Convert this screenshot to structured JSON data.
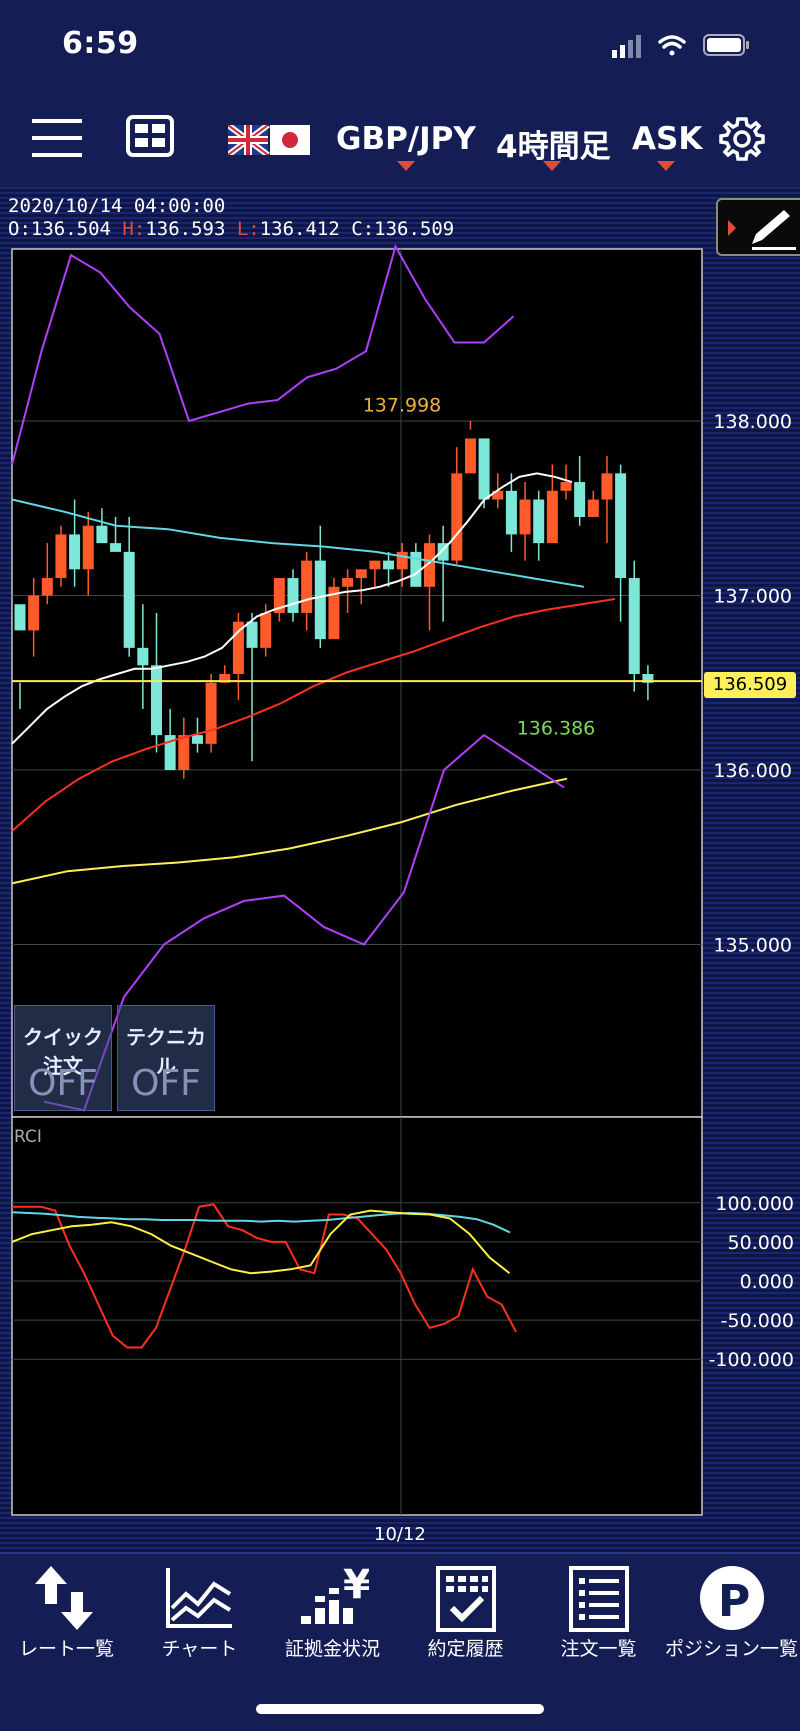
{
  "status": {
    "time": "6:59"
  },
  "toolbar": {
    "pair": "GBP/JPY",
    "timeframe": "4時間足",
    "price_type": "ASK",
    "icons": [
      "menu-icon",
      "layout-icon",
      "uk-flag-icon",
      "japan-flag-icon",
      "gear-icon"
    ]
  },
  "ohlc": {
    "datetime": "2020/10/14  04:00:00",
    "o_label": "O:",
    "o": "136.504",
    "h_label": "H:",
    "h": "136.593",
    "l_label": "L:",
    "l": "136.412",
    "c_label": "C:",
    "c": "136.509"
  },
  "overlay_buttons": {
    "quick_order": {
      "label": "クイック注文",
      "state": "OFF"
    },
    "technical": {
      "label": "テクニカル",
      "state": "OFF"
    }
  },
  "chart_data": [
    {
      "type": "candlestick",
      "y_ticks": [
        "138.000",
        "137.000",
        "136.000",
        "135.000"
      ],
      "ylim": [
        134.1,
        139.0
      ],
      "current_price": "136.509",
      "high_annotation": "137.998",
      "low_annotation": "136.386",
      "x_label": "10/12",
      "colors": {
        "up": "#ff5a2a",
        "down": "#7ee8d8",
        "current_line": "#ffef5a",
        "high_label": "#f0b040",
        "low_label": "#7ed85a"
      },
      "candles": [
        [
          136.95,
          136.35,
          136.5,
          136.8
        ],
        [
          136.8,
          136.65,
          137.1,
          137.0
        ],
        [
          137.0,
          136.95,
          137.3,
          137.1
        ],
        [
          137.1,
          137.05,
          137.4,
          137.35
        ],
        [
          137.35,
          137.05,
          137.55,
          137.15
        ],
        [
          137.15,
          137.0,
          137.48,
          137.4
        ],
        [
          137.4,
          137.35,
          137.5,
          137.3
        ],
        [
          137.3,
          137.25,
          137.45,
          137.25
        ],
        [
          137.25,
          136.65,
          137.45,
          136.7
        ],
        [
          136.7,
          136.35,
          136.95,
          136.6
        ],
        [
          136.6,
          136.1,
          136.9,
          136.2
        ],
        [
          136.2,
          136.0,
          136.35,
          136.0
        ],
        [
          136.0,
          135.95,
          136.3,
          136.2
        ],
        [
          136.2,
          136.1,
          136.3,
          136.15
        ],
        [
          136.15,
          136.1,
          136.55,
          136.5
        ],
        [
          136.5,
          136.5,
          136.6,
          136.55
        ],
        [
          136.55,
          136.4,
          136.9,
          136.85
        ],
        [
          136.85,
          136.05,
          136.9,
          136.7
        ],
        [
          136.7,
          136.65,
          136.95,
          136.9
        ],
        [
          136.9,
          136.85,
          137.1,
          137.1
        ],
        [
          137.1,
          136.85,
          137.15,
          136.9
        ],
        [
          136.9,
          136.8,
          137.25,
          137.2
        ],
        [
          137.2,
          136.7,
          137.4,
          136.75
        ],
        [
          136.75,
          136.8,
          137.1,
          137.05
        ],
        [
          137.05,
          136.9,
          137.15,
          137.1
        ],
        [
          137.1,
          136.95,
          137.15,
          137.15
        ],
        [
          137.15,
          137.05,
          137.2,
          137.2
        ],
        [
          137.2,
          137.05,
          137.25,
          137.15
        ],
        [
          137.15,
          137.05,
          137.3,
          137.25
        ],
        [
          137.25,
          137.05,
          137.3,
          137.05
        ],
        [
          137.05,
          136.8,
          137.35,
          137.3
        ],
        [
          137.3,
          136.85,
          137.4,
          137.2
        ],
        [
          137.2,
          137.18,
          137.85,
          137.7
        ],
        [
          137.7,
          137.95,
          138.0,
          137.9
        ],
        [
          137.9,
          137.5,
          137.75,
          137.55
        ],
        [
          137.55,
          137.5,
          137.7,
          137.6
        ],
        [
          137.6,
          137.25,
          137.7,
          137.35
        ],
        [
          137.35,
          137.2,
          137.65,
          137.55
        ],
        [
          137.55,
          137.2,
          137.6,
          137.3
        ],
        [
          137.3,
          137.45,
          137.75,
          137.6
        ],
        [
          137.6,
          137.55,
          137.75,
          137.65
        ],
        [
          137.65,
          137.4,
          137.8,
          137.45
        ],
        [
          137.45,
          137.48,
          137.6,
          137.55
        ],
        [
          137.55,
          137.3,
          137.8,
          137.7
        ],
        [
          137.7,
          136.85,
          137.75,
          137.1
        ],
        [
          137.1,
          136.45,
          137.2,
          136.55
        ],
        [
          136.55,
          136.4,
          136.6,
          136.5
        ]
      ],
      "sma_short": [
        136.15,
        136.25,
        136.35,
        136.42,
        136.48,
        136.52,
        136.55,
        136.58,
        136.58,
        136.6,
        136.62,
        136.65,
        136.7,
        136.8,
        136.88,
        136.92,
        136.95,
        136.98,
        137.0,
        137.02,
        137.03,
        137.05,
        137.08,
        137.12,
        137.2,
        137.3,
        137.42,
        137.55,
        137.62,
        137.68,
        137.7,
        137.68,
        137.65
      ],
      "sma_mid": [
        135.65,
        135.82,
        135.95,
        136.05,
        136.12,
        136.18,
        136.23,
        136.3,
        136.38,
        136.48,
        136.56,
        136.62,
        136.68,
        136.75,
        136.82,
        136.88,
        136.92,
        136.95,
        136.98
      ],
      "sma_long": [
        137.55,
        137.48,
        137.4,
        137.38,
        137.33,
        137.3,
        137.28,
        137.25,
        137.2,
        137.15,
        137.1,
        137.05
      ],
      "sma_200": [
        135.35,
        135.42,
        135.45,
        135.47,
        135.5,
        135.55,
        135.62,
        135.7,
        135.8,
        135.88,
        135.95
      ],
      "bollinger_upper": [
        137.75,
        138.4,
        138.95,
        138.85,
        138.65,
        138.5,
        138.0,
        138.05,
        138.1,
        138.12,
        138.25,
        138.3,
        138.4,
        139.0,
        138.7,
        138.45,
        138.45,
        138.6
      ],
      "bollinger_lower": [
        134.1,
        134.05,
        134.7,
        135.0,
        135.15,
        135.25,
        135.28,
        135.1,
        135.0,
        135.3,
        136.0,
        136.2,
        136.05,
        135.9
      ]
    },
    {
      "type": "line",
      "title": "RCI",
      "y_ticks": [
        "100.000",
        "50.000",
        "0.000",
        "-50.000",
        "-100.000"
      ],
      "ylim": [
        -125,
        125
      ],
      "series": [
        {
          "color": "#ff3020",
          "values": [
            95,
            95,
            95,
            90,
            45,
            10,
            -30,
            -70,
            -85,
            -85,
            -60,
            -10,
            40,
            95,
            98,
            70,
            65,
            55,
            50,
            50,
            15,
            10,
            85,
            85,
            80,
            60,
            40,
            10,
            -30,
            -60,
            -55,
            -45,
            15,
            -20,
            -30,
            -65
          ]
        },
        {
          "color": "#60d8e8",
          "values": [
            88,
            87,
            86,
            84,
            82,
            81,
            80,
            79,
            79,
            78,
            78,
            78,
            77,
            77,
            77,
            76,
            77,
            76,
            77,
            78,
            80,
            82,
            84,
            86,
            87,
            86,
            84,
            82,
            79,
            72,
            62
          ]
        },
        {
          "color": "#fff040",
          "values": [
            50,
            60,
            65,
            70,
            72,
            75,
            70,
            60,
            45,
            35,
            25,
            15,
            10,
            12,
            15,
            20,
            60,
            85,
            90,
            88,
            86,
            85,
            80,
            60,
            30,
            10
          ]
        }
      ]
    }
  ],
  "nav": [
    {
      "label": "レート一覧",
      "icon": "rate-list-icon"
    },
    {
      "label": "チャート",
      "icon": "chart-icon"
    },
    {
      "label": "証拠金状況",
      "icon": "margin-status-icon"
    },
    {
      "label": "約定履歴",
      "icon": "execution-history-icon"
    },
    {
      "label": "注文一覧",
      "icon": "order-list-icon"
    },
    {
      "label": "ポジション一覧",
      "icon": "position-list-icon"
    }
  ]
}
